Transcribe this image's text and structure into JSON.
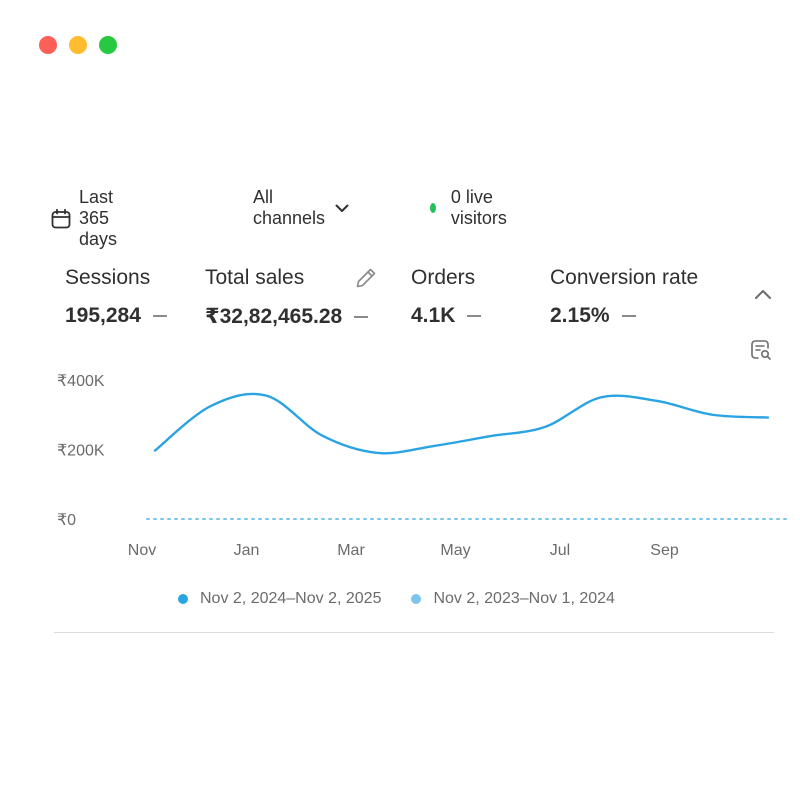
{
  "window": {
    "traffic_lights": [
      {
        "name": "close",
        "color": "#fe5f57"
      },
      {
        "name": "minimize",
        "color": "#febc2e"
      },
      {
        "name": "maximize",
        "color": "#28c840"
      }
    ]
  },
  "filters": {
    "date_range": {
      "label": "Last 365 days",
      "icon": "calendar-icon"
    },
    "channels": {
      "label": "All channels",
      "icon": "chevron-down-icon"
    },
    "live": {
      "label": "0 live visitors",
      "color": "#22c35a"
    }
  },
  "metrics": [
    {
      "label": "Sessions",
      "value": "195,284"
    },
    {
      "label": "Total sales",
      "value": "₹32,82,465.28"
    },
    {
      "label": "Orders",
      "value": "4.1K"
    },
    {
      "label": "Conversion rate",
      "value": "2.15%"
    }
  ],
  "icons": {
    "edit": "pencil-icon",
    "collapse": "chevron-up-icon",
    "report": "search-report-icon"
  },
  "chart_data": {
    "type": "line",
    "title": "",
    "xlabel": "",
    "ylabel": "",
    "y_ticks": [
      "₹400K",
      "₹200K",
      "₹0"
    ],
    "x_ticks": [
      "Nov",
      "Jan",
      "Mar",
      "May",
      "Jul",
      "Sep"
    ],
    "ylim": [
      0,
      400000
    ],
    "grid": false,
    "legend_position": "bottom",
    "series": [
      {
        "name": "Nov 2, 2024–Nov 2, 2025",
        "color": "#2aa3e3",
        "style": "solid",
        "x": [
          "Nov",
          "Dec",
          "Jan",
          "Feb",
          "Mar",
          "Apr",
          "May",
          "Jun",
          "Jul",
          "Aug",
          "Sep",
          "Oct"
        ],
        "values": [
          197000,
          325000,
          355000,
          240000,
          190000,
          210000,
          238000,
          265000,
          350000,
          340000,
          300000,
          292000
        ]
      },
      {
        "name": "Nov 2, 2023–Nov 1, 2024",
        "color": "#7cc4ea",
        "style": "dotted",
        "x": [
          "Nov",
          "Dec",
          "Jan",
          "Feb",
          "Mar",
          "Apr",
          "May",
          "Jun",
          "Jul",
          "Aug",
          "Sep",
          "Oct"
        ],
        "values": [
          0,
          0,
          0,
          0,
          0,
          0,
          0,
          0,
          0,
          0,
          0,
          0
        ]
      }
    ]
  }
}
